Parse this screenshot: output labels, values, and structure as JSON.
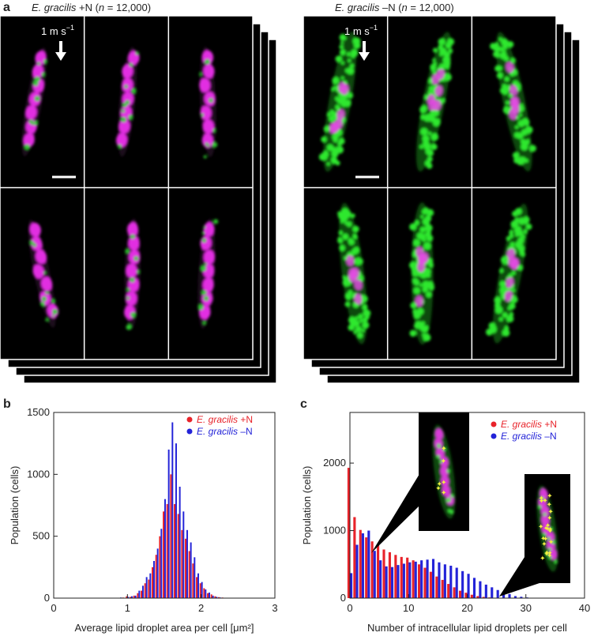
{
  "panel_labels": [
    "a",
    "b",
    "c"
  ],
  "image_panels": [
    {
      "title_parts": [
        {
          "text": "E. gracilis",
          "italic": true
        },
        {
          "text": " +N ("
        },
        {
          "text": "n",
          "italic": true
        },
        {
          "text": " = 12,000)"
        }
      ],
      "speed": {
        "text": "1 m s",
        "sup": "−1"
      },
      "condition": "plus"
    },
    {
      "title_parts": [
        {
          "text": "E. gracilis",
          "italic": true
        },
        {
          "text": " –N ("
        },
        {
          "text": "n",
          "italic": true
        },
        {
          "text": " = 12,000)"
        }
      ],
      "speed": {
        "text": "1 m s",
        "sup": "−1"
      },
      "condition": "minus"
    }
  ],
  "chart_data": [
    {
      "type": "histogram",
      "xlabel": "Average lipid droplet area per cell [μm²]",
      "ylabel": "Population (cells)",
      "x": [
        0.9,
        0.95,
        1.0,
        1.05,
        1.1,
        1.15,
        1.2,
        1.25,
        1.3,
        1.35,
        1.4,
        1.45,
        1.5,
        1.55,
        1.6,
        1.65,
        1.7,
        1.75,
        1.8,
        1.85,
        1.9,
        1.95,
        2.0,
        2.05,
        2.1,
        2.15,
        2.2,
        2.25,
        2.3,
        2.35,
        2.4,
        2.45,
        2.5
      ],
      "series": [
        {
          "name": "E. gracilis +N",
          "color": "#e8232a",
          "values": [
            0,
            5,
            15,
            10,
            20,
            40,
            60,
            120,
            150,
            250,
            350,
            500,
            700,
            760,
            1000,
            760,
            680,
            550,
            480,
            380,
            280,
            170,
            120,
            80,
            40,
            30,
            15,
            8,
            5,
            3,
            2,
            1,
            0
          ]
        },
        {
          "name": "E. gracilis –N",
          "color": "#2323d8",
          "values": [
            5,
            3,
            10,
            15,
            20,
            60,
            100,
            170,
            200,
            300,
            400,
            560,
            800,
            1200,
            1420,
            1250,
            900,
            700,
            550,
            450,
            330,
            200,
            130,
            70,
            45,
            20,
            10,
            5,
            3,
            1,
            0,
            0,
            0
          ]
        }
      ],
      "xlim": [
        0,
        3
      ],
      "xticks": [
        0,
        1,
        2,
        3
      ],
      "ylim": [
        0,
        1500
      ],
      "yticks": [
        0,
        500,
        1000,
        1500
      ]
    },
    {
      "type": "histogram",
      "xlabel": "Number of intracellular lipid droplets per cell",
      "ylabel": "Population (cells)",
      "x": [
        0,
        1,
        2,
        3,
        4,
        5,
        6,
        7,
        8,
        9,
        10,
        11,
        12,
        13,
        14,
        15,
        16,
        17,
        18,
        19,
        20,
        21,
        22,
        23,
        24,
        25,
        26,
        27,
        28,
        29,
        30,
        31,
        32,
        33,
        34,
        35,
        36,
        37,
        38,
        39,
        40
      ],
      "series": [
        {
          "name": "E. gracilis +N",
          "color": "#e8232a",
          "values": [
            1930,
            1200,
            1010,
            900,
            840,
            800,
            720,
            680,
            640,
            610,
            600,
            560,
            500,
            450,
            390,
            320,
            270,
            210,
            160,
            110,
            80,
            50,
            30,
            18,
            10,
            5,
            3,
            1,
            0,
            0,
            0,
            0,
            0,
            0,
            0,
            0,
            0,
            0,
            0,
            0,
            0
          ]
        },
        {
          "name": "E. gracilis –N",
          "color": "#2323d8",
          "values": [
            370,
            790,
            960,
            1000,
            700,
            560,
            470,
            460,
            490,
            510,
            530,
            540,
            560,
            570,
            580,
            530,
            500,
            480,
            450,
            400,
            360,
            300,
            250,
            200,
            160,
            120,
            80,
            60,
            30,
            20,
            10,
            5,
            3,
            2,
            1,
            1,
            0,
            0,
            0,
            0,
            0
          ]
        }
      ],
      "xlim": [
        0,
        40
      ],
      "xticks": [
        0,
        10,
        20,
        30,
        40
      ],
      "ylim": [
        0,
        2750
      ],
      "yticks": [
        0,
        1000,
        2000
      ]
    }
  ]
}
